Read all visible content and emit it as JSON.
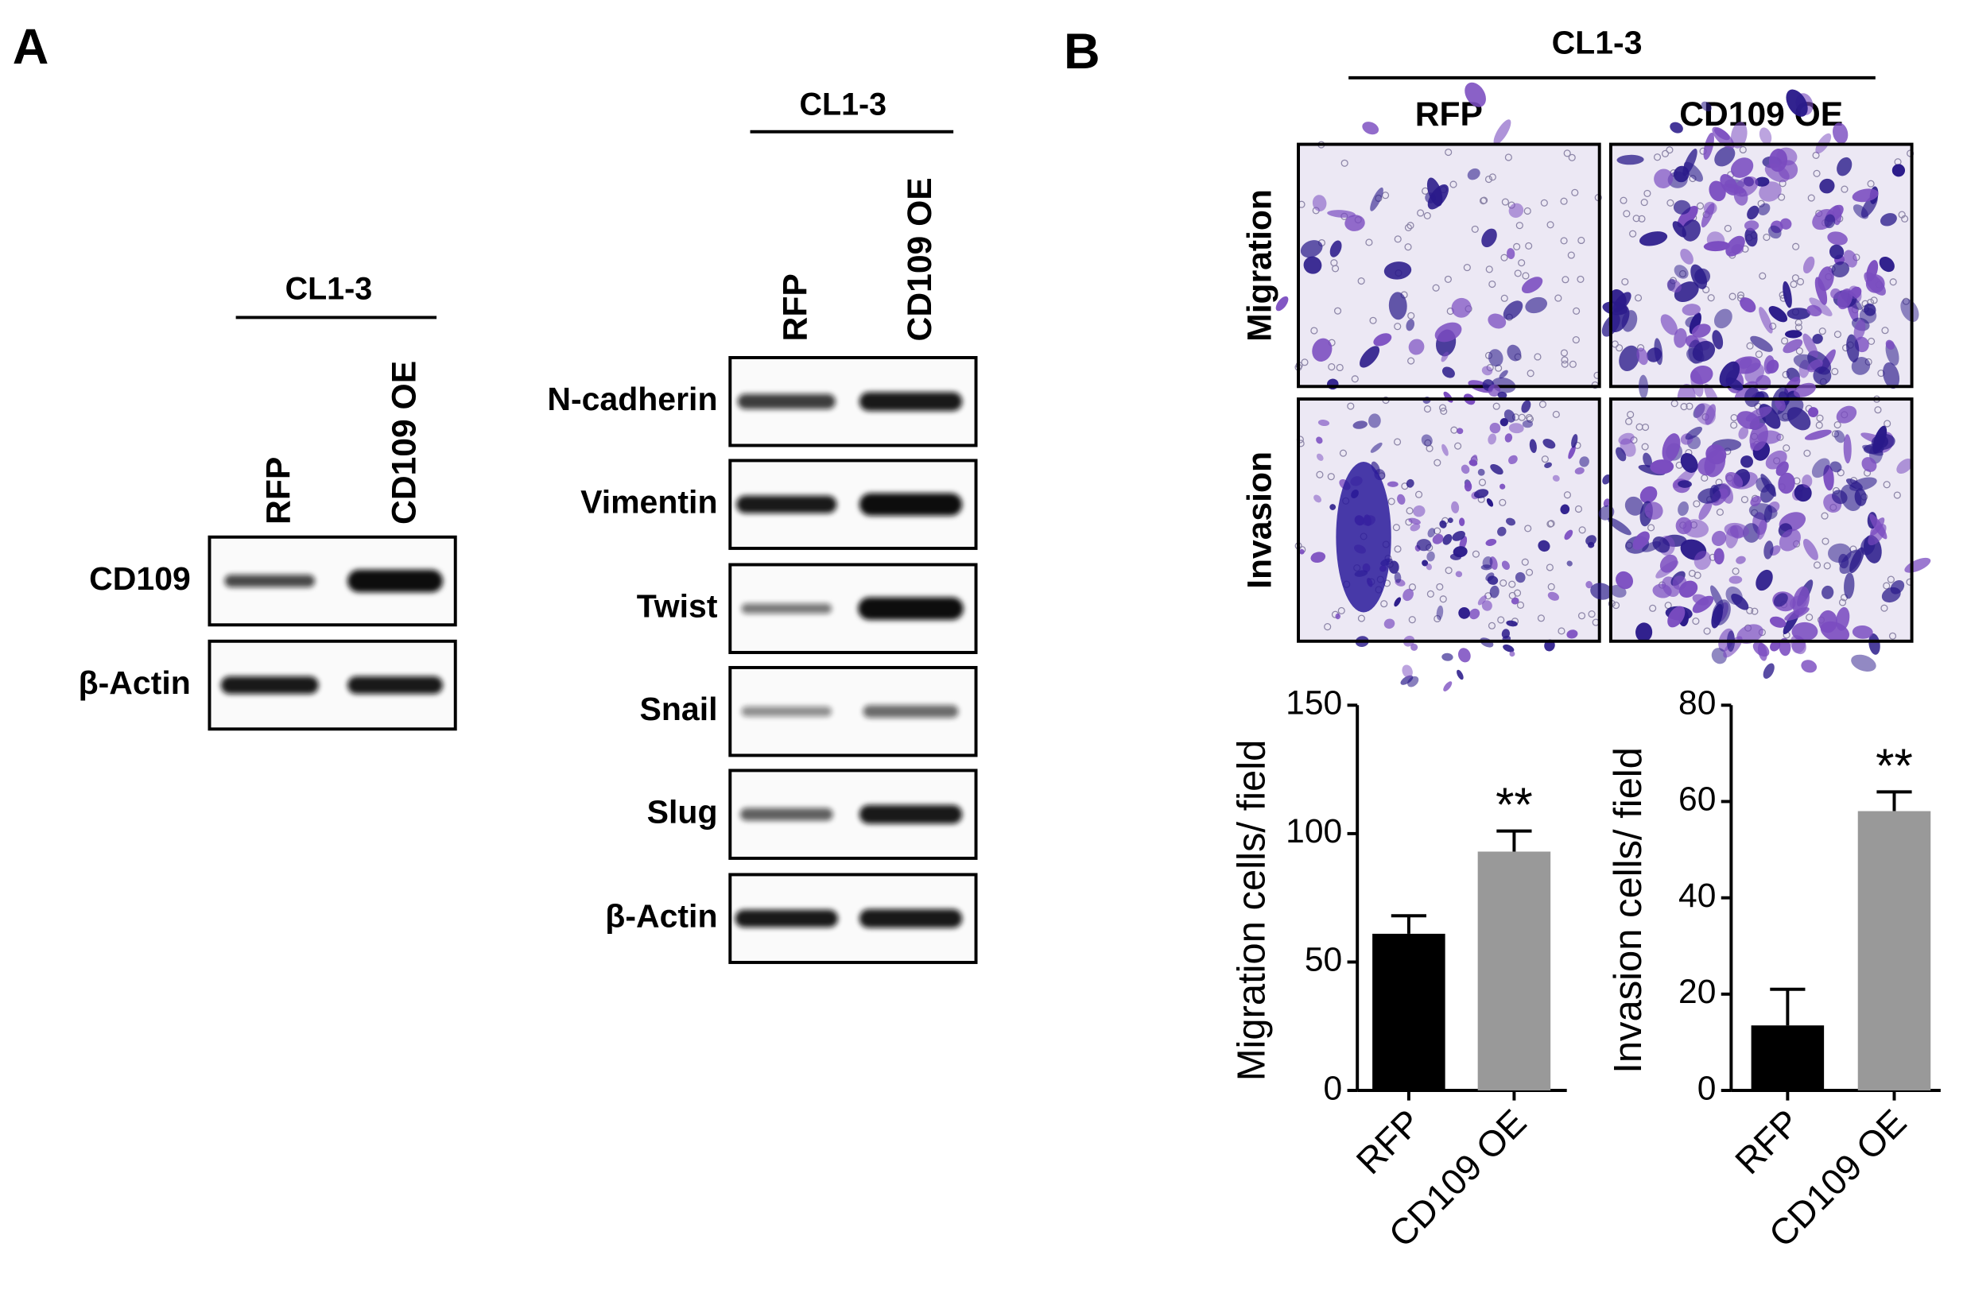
{
  "panel_a": {
    "label": "A",
    "blot_1": {
      "header": "CL1-3",
      "lanes": [
        "RFP",
        "CD109 OE"
      ],
      "rows": [
        "CD109",
        "β-Actin"
      ]
    },
    "blot_2": {
      "header": "CL1-3",
      "lanes": [
        "RFP",
        "CD109 OE"
      ],
      "rows": [
        "N-cadherin",
        "Vimentin",
        "Twist",
        "Snail",
        "Slug",
        "β-Actin"
      ]
    }
  },
  "panel_b": {
    "label": "B",
    "header": "CL1-3",
    "columns": [
      "RFP",
      "CD109 OE"
    ],
    "rows": [
      "Migration",
      "Invasion"
    ]
  },
  "chart_data": [
    {
      "type": "bar",
      "y_label": "Migration cells/ field",
      "categories": [
        "RFP",
        "CD109 OE"
      ],
      "values": [
        61,
        93
      ],
      "errors": [
        7,
        8
      ],
      "significance": [
        null,
        "**"
      ],
      "colors": [
        "#000000",
        "#999999"
      ],
      "ylim": [
        0,
        150
      ],
      "yticks": [
        0,
        50,
        100,
        150
      ]
    },
    {
      "type": "bar",
      "y_label": "Invasion cells/ field",
      "categories": [
        "RFP",
        "CD109 OE"
      ],
      "values": [
        13.5,
        58
      ],
      "errors": [
        7.5,
        4
      ],
      "significance": [
        null,
        "**"
      ],
      "colors": [
        "#000000",
        "#999999"
      ],
      "ylim": [
        0,
        80
      ],
      "yticks": [
        0,
        20,
        40,
        60,
        80
      ]
    }
  ]
}
